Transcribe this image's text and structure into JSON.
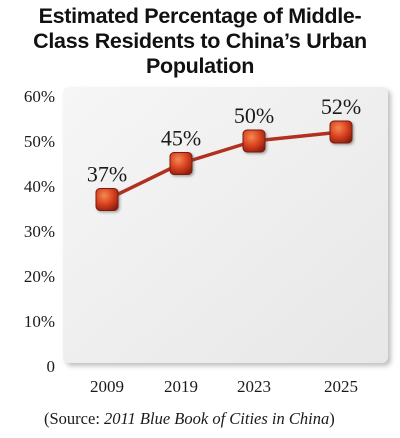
{
  "chart_data": {
    "type": "line",
    "title_lines": [
      "Estimated Percentage of Middle-",
      "Class Residents to China’s Urban",
      "Population"
    ],
    "categories": [
      "2009",
      "2019",
      "2023",
      "2025"
    ],
    "values": [
      37,
      45,
      50,
      52
    ],
    "data_labels": [
      "37%",
      "45%",
      "50%",
      "52%"
    ],
    "y_ticks": [
      "0",
      "10%",
      "20%",
      "30%",
      "40%",
      "50%",
      "60%"
    ],
    "ylim": [
      0,
      60
    ],
    "grid": false,
    "line_color": "#b1301f",
    "marker_color": "#d9411f",
    "plot_background": "#eeeeee"
  },
  "source": {
    "prefix": "(Source: ",
    "title": "2011 Blue Book of Cities in China",
    "suffix": ")"
  }
}
